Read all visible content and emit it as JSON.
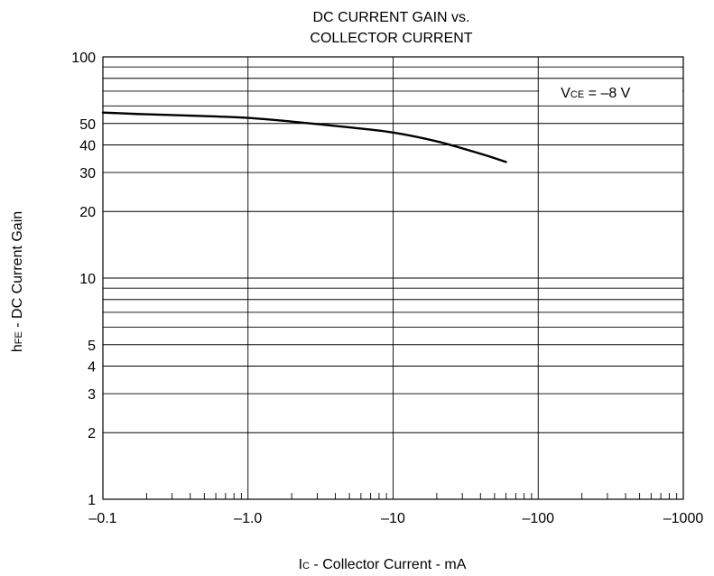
{
  "chart_data": {
    "type": "line",
    "title_line1": "DC CURRENT GAIN vs.",
    "title_line2": "COLLECTOR CURRENT",
    "x_scale": "log",
    "y_scale": "log",
    "x_magnitude_range": [
      0.1,
      1000
    ],
    "y_range": [
      1,
      100
    ],
    "x_ticks": [
      {
        "value": 0.1,
        "label": "–0.1"
      },
      {
        "value": 1,
        "label": "–1.0"
      },
      {
        "value": 10,
        "label": "–10"
      },
      {
        "value": 100,
        "label": "–100"
      },
      {
        "value": 1000,
        "label": "–1000"
      }
    ],
    "y_ticks": [
      {
        "value": 100,
        "label": "100"
      },
      {
        "value": 50,
        "label": "50"
      },
      {
        "value": 40,
        "label": "40"
      },
      {
        "value": 30,
        "label": "30"
      },
      {
        "value": 20,
        "label": "20"
      },
      {
        "value": 10,
        "label": "10"
      },
      {
        "value": 5,
        "label": "5"
      },
      {
        "value": 4,
        "label": "4"
      },
      {
        "value": 3,
        "label": "3"
      },
      {
        "value": 2,
        "label": "2"
      },
      {
        "value": 1,
        "label": "1"
      }
    ],
    "y_gridlines": [
      1,
      2,
      3,
      4,
      5,
      6,
      7,
      8,
      9,
      10,
      20,
      30,
      40,
      50,
      60,
      70,
      80,
      90,
      100
    ],
    "x_gridlines": [
      0.1,
      1,
      10,
      100,
      1000
    ],
    "series": [
      {
        "x": [
          -0.1,
          -0.2,
          -0.5,
          -1.0,
          -2.0,
          -5.0,
          -10,
          -20,
          -40,
          -60
        ],
        "y": [
          56.0,
          55.0,
          54.0,
          53.0,
          51.0,
          48.0,
          45.5,
          41.5,
          36.5,
          33.5
        ]
      }
    ],
    "annotation": {
      "main": "V",
      "sub": "CE",
      "rest": " = –8 V"
    },
    "xlabel": {
      "main": "I",
      "sub": "C",
      "rest": " - Collector Current - mA"
    },
    "ylabel": {
      "main": "h",
      "sub": "FE",
      "rest": " - DC Current Gain"
    },
    "grid": true,
    "line_color": "#000000"
  }
}
